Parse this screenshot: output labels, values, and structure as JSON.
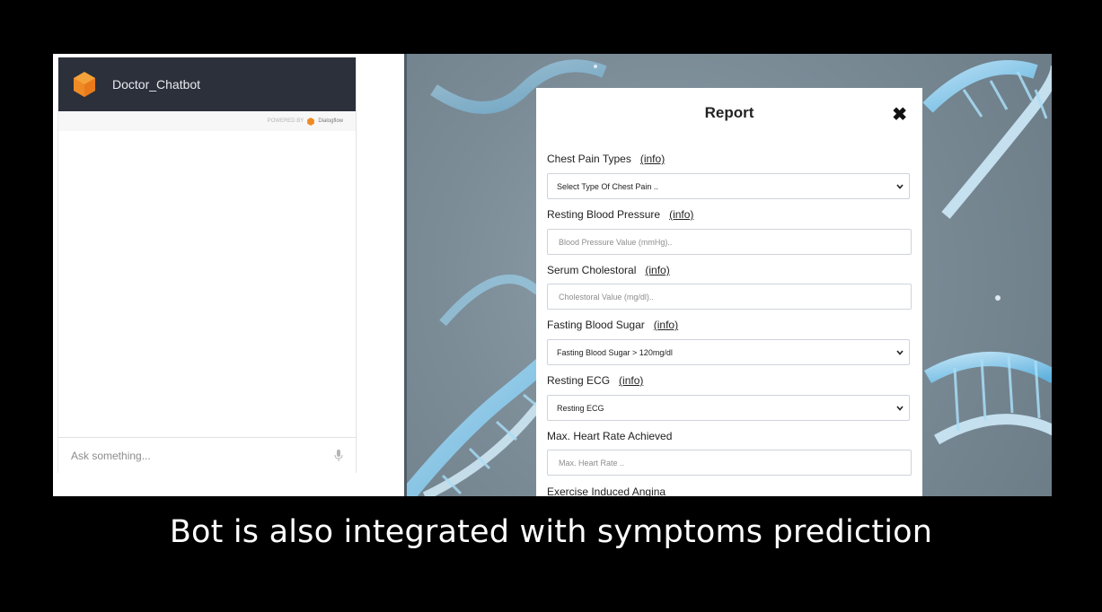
{
  "chat": {
    "title": "Doctor_Chatbot",
    "powered_by": "POWERED BY",
    "powered_brand": "Dialogflow",
    "input_placeholder": "Ask something...",
    "logo_color": "#f08a24",
    "header_color": "#2b303b"
  },
  "report": {
    "title": "Report",
    "close_symbol": "✖",
    "info_label": "(info)",
    "fields": {
      "chest_pain": {
        "label": "Chest Pain Types",
        "selected": "Select Type Of Chest Pain .."
      },
      "resting_bp": {
        "label": "Resting Blood Pressure",
        "placeholder": "Blood Pressure Value (mmHg).."
      },
      "cholesterol": {
        "label": "Serum Cholestoral",
        "placeholder": "Cholestoral Value (mg/dl).."
      },
      "fasting_sugar": {
        "label": "Fasting Blood Sugar",
        "selected": "Fasting Blood Sugar > 120mg/dl"
      },
      "resting_ecg": {
        "label": "Resting ECG",
        "selected": "Resting ECG"
      },
      "max_hr": {
        "label": "Max. Heart Rate Achieved",
        "placeholder": "Max. Heart Rate .."
      },
      "exercise_angina": {
        "label": "Exercise Induced Angina"
      }
    }
  },
  "caption": "Bot is also integrated with symptoms prediction"
}
